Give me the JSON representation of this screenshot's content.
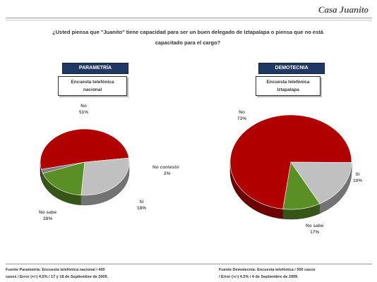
{
  "header": {
    "title": "Casa Juanito"
  },
  "question": {
    "line1": "¿Usted piensa que \"Juanito\" tiene capacidad para ser un buen delegado de Iztapalapa o piensa que no está",
    "line2": "capacitado para el cargo?"
  },
  "colors": {
    "no": "#b00000",
    "si": "#5a8f26",
    "no_sabe": "#c0c0c0",
    "no_contesto": "#808080",
    "pollster_bg": "#1f3864"
  },
  "chart_data": [
    {
      "type": "pie",
      "pollster": "PARAMETRÍA",
      "survey": [
        "Encuesta telefónica",
        "nacional"
      ],
      "slices": [
        {
          "label": "No",
          "display": "51%",
          "value": 51,
          "color": "#b00000"
        },
        {
          "label": "No contestó",
          "display": "2%",
          "value": 2,
          "color": "#808080"
        },
        {
          "label": "Sí",
          "display": "18%",
          "value": 18,
          "color": "#5a8f26"
        },
        {
          "label": "No sabe",
          "display": "28%",
          "value": 28,
          "color": "#c0c0c0"
        }
      ]
    },
    {
      "type": "pie",
      "pollster": "DEMOTECNIA",
      "survey": [
        "Encuesta telefónica",
        "Iztapalapa"
      ],
      "slices": [
        {
          "label": "No",
          "display": "73%",
          "value": 73,
          "color": "#b00000"
        },
        {
          "label": "Sí",
          "display": "10%",
          "value": 10,
          "color": "#5a8f26"
        },
        {
          "label": "No sabe",
          "display": "17%",
          "value": 17,
          "color": "#c0c0c0"
        }
      ]
    }
  ],
  "sources": {
    "left": [
      "Fuente Parametría: Encuesta telefónica nacional / 400",
      "casos / Error (+/-) 4.5% / 17 y 18 de Septiembre de 2009."
    ],
    "right": [
      "Fuente Demotecnia: Encuesta telefónica / 500 casos",
      "/ Error (+/-) 4.5% / 4 de Septiembre de 2009."
    ]
  }
}
